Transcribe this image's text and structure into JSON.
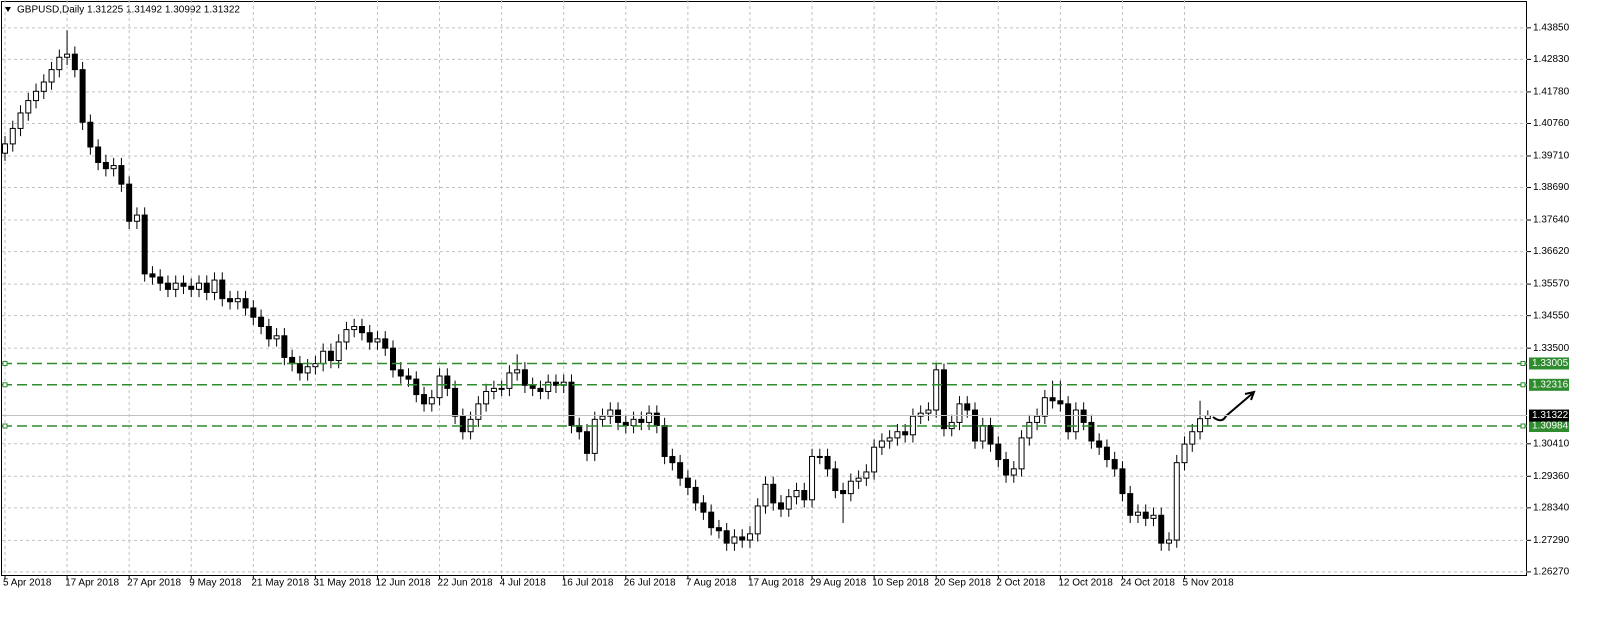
{
  "chart_data": {
    "type": "candlestick",
    "title": "GBPUSD,Daily  1.31225 1.31492 1.30992 1.31322",
    "categories": [
      "5 Apr 2018",
      null,
      null,
      null,
      null,
      null,
      null,
      null,
      "17 Apr 2018",
      null,
      null,
      null,
      null,
      null,
      null,
      null,
      "27 Apr 2018",
      null,
      null,
      null,
      null,
      null,
      null,
      null,
      "9 May 2018",
      null,
      null,
      null,
      null,
      null,
      null,
      null,
      "21 May 2018",
      null,
      null,
      null,
      null,
      null,
      null,
      null,
      "31 May 2018",
      null,
      null,
      null,
      null,
      null,
      null,
      null,
      "12 Jun 2018",
      null,
      null,
      null,
      null,
      null,
      null,
      null,
      "22 Jun 2018",
      null,
      null,
      null,
      null,
      null,
      null,
      null,
      "4 Jul 2018",
      null,
      null,
      null,
      null,
      null,
      null,
      null,
      "16 Jul 2018",
      null,
      null,
      null,
      null,
      null,
      null,
      null,
      "26 Jul 2018",
      null,
      null,
      null,
      null,
      null,
      null,
      null,
      "7 Aug 2018",
      null,
      null,
      null,
      null,
      null,
      null,
      null,
      "17 Aug 2018",
      null,
      null,
      null,
      null,
      null,
      null,
      null,
      "29 Aug 2018",
      null,
      null,
      null,
      null,
      null,
      null,
      null,
      "10 Sep 2018",
      null,
      null,
      null,
      null,
      null,
      null,
      null,
      "20 Sep 2018",
      null,
      null,
      null,
      null,
      null,
      null,
      null,
      "2 Oct 2018",
      null,
      null,
      null,
      null,
      null,
      null,
      null,
      "12 Oct 2018",
      null,
      null,
      null,
      null,
      null,
      null,
      null,
      "24 Oct 2018",
      null,
      null,
      null,
      null,
      null,
      null,
      null,
      "5 Nov 2018",
      null,
      null,
      null
    ],
    "open": [
      1.398,
      1.401,
      1.406,
      1.411,
      1.415,
      1.418,
      1.421,
      1.425,
      1.429,
      1.43,
      1.425,
      1.408,
      1.4,
      1.395,
      1.393,
      1.394,
      1.388,
      1.376,
      1.378,
      1.359,
      1.358,
      1.356,
      1.354,
      1.356,
      1.355,
      1.354,
      1.356,
      1.353,
      1.357,
      1.351,
      1.35,
      1.351,
      1.348,
      1.345,
      1.342,
      1.338,
      1.339,
      1.332,
      1.33,
      1.327,
      1.329,
      1.33,
      1.334,
      1.331,
      1.337,
      1.341,
      1.342,
      1.34,
      1.337,
      1.338,
      1.335,
      1.328,
      1.326,
      1.325,
      1.32,
      1.317,
      1.319,
      1.326,
      1.322,
      1.313,
      1.308,
      1.312,
      1.317,
      1.321,
      1.322,
      1.322,
      1.327,
      1.328,
      1.323,
      1.322,
      1.321,
      1.324,
      1.323,
      1.324,
      1.31,
      1.308,
      1.301,
      1.312,
      1.313,
      1.315,
      1.311,
      1.31,
      1.312,
      1.311,
      1.314,
      1.31,
      1.3,
      1.298,
      1.293,
      1.29,
      1.285,
      1.282,
      1.277,
      1.276,
      1.272,
      1.274,
      1.273,
      1.275,
      1.284,
      1.291,
      1.285,
      1.283,
      1.287,
      1.289,
      1.286,
      1.3,
      1.3,
      1.296,
      1.289,
      1.288,
      1.292,
      1.293,
      1.295,
      1.303,
      1.305,
      1.306,
      1.308,
      1.307,
      1.313,
      1.314,
      1.315,
      1.328,
      1.309,
      1.311,
      1.317,
      1.315,
      1.305,
      1.31,
      1.304,
      1.299,
      1.294,
      1.296,
      1.306,
      1.311,
      1.313,
      1.319,
      1.318,
      1.317,
      1.308,
      1.315,
      1.311,
      1.305,
      1.303,
      1.299,
      1.296,
      1.288,
      1.281,
      1.282,
      1.28,
      1.281,
      1.272,
      1.273,
      1.298,
      1.304,
      1.308,
      1.31225
    ],
    "high": [
      1.4035,
      1.4085,
      1.4135,
      1.4175,
      1.4205,
      1.4235,
      1.4275,
      1.4315,
      1.4377,
      1.4325,
      1.4275,
      1.4105,
      1.4025,
      1.3975,
      1.3965,
      1.3965,
      1.3905,
      1.3805,
      1.3805,
      1.3615,
      1.3605,
      1.3585,
      1.3585,
      1.3585,
      1.3575,
      1.3585,
      1.3585,
      1.3595,
      1.3595,
      1.3535,
      1.3535,
      1.3535,
      1.3505,
      1.3475,
      1.3445,
      1.3415,
      1.3415,
      1.3345,
      1.3325,
      1.3315,
      1.3325,
      1.3365,
      1.3365,
      1.3395,
      1.3435,
      1.3445,
      1.3445,
      1.3425,
      1.3405,
      1.3405,
      1.3375,
      1.3305,
      1.3285,
      1.3275,
      1.3225,
      1.3215,
      1.3285,
      1.3285,
      1.3245,
      1.3155,
      1.3145,
      1.3195,
      1.3235,
      1.3245,
      1.3245,
      1.3295,
      1.333,
      1.3305,
      1.3255,
      1.3245,
      1.3265,
      1.3265,
      1.3265,
      1.3265,
      1.3125,
      1.3105,
      1.3145,
      1.3155,
      1.3175,
      1.3175,
      1.3135,
      1.3145,
      1.3145,
      1.3165,
      1.3165,
      1.3125,
      1.3025,
      1.3005,
      1.2955,
      1.2925,
      1.2875,
      1.2845,
      1.2795,
      1.2785,
      1.2765,
      1.2765,
      1.2775,
      1.2865,
      1.2935,
      1.2935,
      1.2875,
      1.2895,
      1.2915,
      1.2915,
      1.3025,
      1.3025,
      1.3025,
      1.2985,
      1.2915,
      1.2945,
      1.2955,
      1.2975,
      1.3055,
      1.3075,
      1.3085,
      1.3105,
      1.3105,
      1.3155,
      1.3165,
      1.3175,
      1.33,
      1.33,
      1.3135,
      1.3195,
      1.3195,
      1.3175,
      1.3125,
      1.3125,
      1.3065,
      1.3015,
      1.2985,
      1.3085,
      1.3135,
      1.3155,
      1.3215,
      1.3245,
      1.3245,
      1.3195,
      1.3175,
      1.3175,
      1.3135,
      1.3075,
      1.3055,
      1.3015,
      1.2985,
      1.2905,
      1.2845,
      1.2845,
      1.2835,
      1.2835,
      1.2755,
      1.3005,
      1.3065,
      1.3105,
      1.318,
      1.31492
    ],
    "low": [
      1.3955,
      1.3985,
      1.4035,
      1.4085,
      1.4125,
      1.4155,
      1.4185,
      1.4225,
      1.4265,
      1.4225,
      1.4055,
      1.3975,
      1.3925,
      1.3905,
      1.3905,
      1.3855,
      1.3735,
      1.3735,
      1.3565,
      1.3555,
      1.3535,
      1.3515,
      1.3515,
      1.3525,
      1.3515,
      1.3515,
      1.3505,
      1.3505,
      1.3485,
      1.3475,
      1.3475,
      1.3455,
      1.3425,
      1.3395,
      1.3355,
      1.3355,
      1.3295,
      1.3275,
      1.3245,
      1.3245,
      1.3265,
      1.3275,
      1.3285,
      1.3285,
      1.3345,
      1.3385,
      1.3375,
      1.3345,
      1.3345,
      1.3325,
      1.3255,
      1.3235,
      1.3225,
      1.3175,
      1.3145,
      1.3145,
      1.3165,
      1.3195,
      1.3105,
      1.3055,
      1.3055,
      1.3095,
      1.3145,
      1.3185,
      1.3195,
      1.3195,
      1.3245,
      1.3205,
      1.3195,
      1.3185,
      1.3185,
      1.3205,
      1.3205,
      1.3075,
      1.3055,
      1.2985,
      1.2985,
      1.3095,
      1.3105,
      1.3085,
      1.3075,
      1.3075,
      1.3085,
      1.3085,
      1.3075,
      1.2975,
      1.2955,
      1.2905,
      1.2875,
      1.2825,
      1.2795,
      1.2745,
      1.2735,
      1.2695,
      1.2695,
      1.2705,
      1.2705,
      1.2725,
      1.2815,
      1.2825,
      1.2805,
      1.2805,
      1.2845,
      1.2835,
      1.2835,
      1.2975,
      1.2935,
      1.2865,
      1.2785,
      1.2855,
      1.2895,
      1.2905,
      1.2925,
      1.3005,
      1.3025,
      1.3035,
      1.3045,
      1.3045,
      1.3105,
      1.3115,
      1.3125,
      1.3065,
      1.3065,
      1.3085,
      1.3125,
      1.3025,
      1.3025,
      1.3015,
      1.2965,
      1.2915,
      1.2915,
      1.2935,
      1.3035,
      1.3085,
      1.3105,
      1.3155,
      1.3145,
      1.3055,
      1.3055,
      1.3085,
      1.3025,
      1.3005,
      1.2965,
      1.2935,
      1.2855,
      1.2785,
      1.2785,
      1.2775,
      1.2775,
      1.2695,
      1.2695,
      1.2705,
      1.2955,
      1.3015,
      1.3055,
      1.30992
    ],
    "close": [
      1.401,
      1.406,
      1.411,
      1.415,
      1.418,
      1.421,
      1.425,
      1.429,
      1.43,
      1.425,
      1.408,
      1.4,
      1.395,
      1.393,
      1.394,
      1.388,
      1.376,
      1.378,
      1.359,
      1.358,
      1.356,
      1.354,
      1.356,
      1.355,
      1.354,
      1.356,
      1.353,
      1.357,
      1.351,
      1.35,
      1.351,
      1.348,
      1.345,
      1.342,
      1.338,
      1.339,
      1.332,
      1.33,
      1.327,
      1.329,
      1.33,
      1.334,
      1.331,
      1.337,
      1.341,
      1.342,
      1.34,
      1.337,
      1.338,
      1.335,
      1.328,
      1.326,
      1.325,
      1.32,
      1.317,
      1.319,
      1.326,
      1.322,
      1.313,
      1.308,
      1.312,
      1.317,
      1.321,
      1.322,
      1.322,
      1.327,
      1.328,
      1.323,
      1.322,
      1.321,
      1.324,
      1.323,
      1.324,
      1.31,
      1.308,
      1.301,
      1.312,
      1.313,
      1.315,
      1.311,
      1.31,
      1.312,
      1.311,
      1.314,
      1.31,
      1.3,
      1.298,
      1.293,
      1.29,
      1.285,
      1.282,
      1.277,
      1.276,
      1.272,
      1.274,
      1.273,
      1.275,
      1.284,
      1.291,
      1.285,
      1.283,
      1.287,
      1.289,
      1.286,
      1.3,
      1.3,
      1.296,
      1.289,
      1.288,
      1.292,
      1.293,
      1.295,
      1.303,
      1.305,
      1.306,
      1.308,
      1.307,
      1.313,
      1.314,
      1.315,
      1.328,
      1.309,
      1.311,
      1.317,
      1.315,
      1.305,
      1.31,
      1.304,
      1.299,
      1.294,
      1.296,
      1.306,
      1.311,
      1.313,
      1.319,
      1.318,
      1.317,
      1.308,
      1.315,
      1.311,
      1.305,
      1.303,
      1.299,
      1.296,
      1.288,
      1.281,
      1.282,
      1.28,
      1.281,
      1.272,
      1.273,
      1.298,
      1.304,
      1.308,
      1.3122,
      1.31322
    ],
    "color": "#000000",
    "up_fill": "#ffffff",
    "down_fill": "#000000",
    "ylim": [
      1.2617,
      1.4475
    ],
    "yticks": [
      {
        "value": 1.2627,
        "label": "1.26270"
      },
      {
        "value": 1.2729,
        "label": "1.27290"
      },
      {
        "value": 1.2834,
        "label": "1.28340"
      },
      {
        "value": 1.2936,
        "label": "1.29360"
      },
      {
        "value": 1.3041,
        "label": "1.30410"
      },
      {
        "value": 1.335,
        "label": "1.33500"
      },
      {
        "value": 1.3455,
        "label": "1.34550"
      },
      {
        "value": 1.3557,
        "label": "1.35570"
      },
      {
        "value": 1.3662,
        "label": "1.36620"
      },
      {
        "value": 1.3764,
        "label": "1.37640"
      },
      {
        "value": 1.3869,
        "label": "1.38690"
      },
      {
        "value": 1.3971,
        "label": "1.39710"
      },
      {
        "value": 1.4076,
        "label": "1.40760"
      },
      {
        "value": 1.4178,
        "label": "1.41780"
      },
      {
        "value": 1.4283,
        "label": "1.42830"
      },
      {
        "value": 1.4385,
        "label": "1.43850"
      }
    ],
    "grid": true,
    "levels": [
      {
        "value": 1.33005,
        "label": "1.33005"
      },
      {
        "value": 1.32316,
        "label": "1.32316"
      },
      {
        "value": 1.30984,
        "label": "1.30984"
      }
    ],
    "level_color": "#2e8b2e",
    "price_marker": {
      "value": 1.31322,
      "label": "1.31322"
    }
  }
}
